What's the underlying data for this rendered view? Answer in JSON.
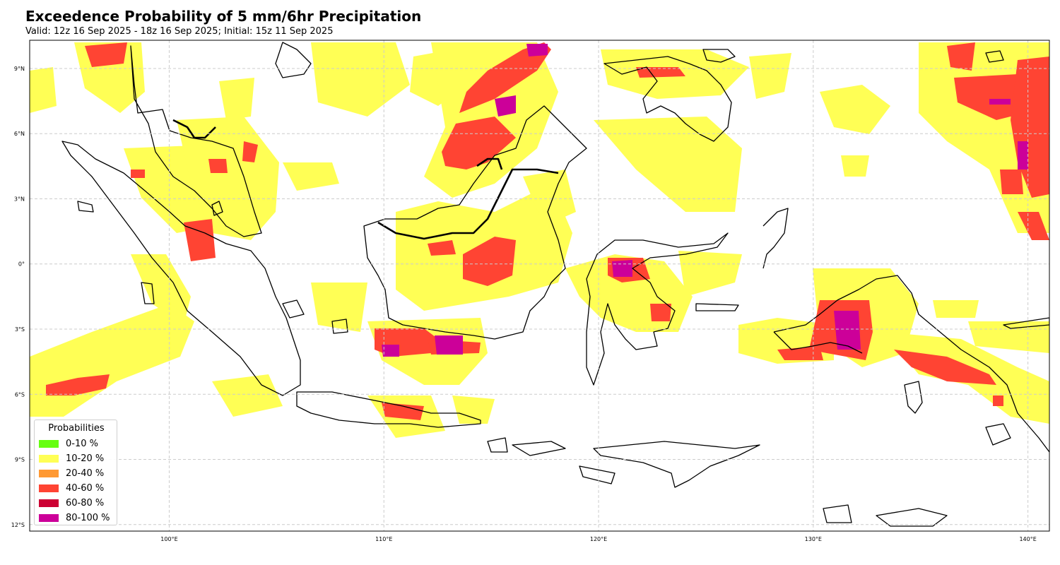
{
  "header": {
    "title": "Exceedence Probability of 5 mm/6hr Precipitation",
    "subtitle": "Valid: 12z 16 Sep 2025 - 18z 16 Sep 2025; Initial: 15z 11 Sep 2025"
  },
  "map": {
    "region": "Indonesia / Maritime Continent",
    "lon_range": [
      93.5,
      141
    ],
    "lat_range": [
      -12.3,
      10.3
    ],
    "gridlines": true,
    "lon_ticks": [
      {
        "value": 100,
        "label": "100°E"
      },
      {
        "value": 110,
        "label": "110°E"
      },
      {
        "value": 120,
        "label": "120°E"
      },
      {
        "value": 130,
        "label": "130°E"
      },
      {
        "value": 140,
        "label": "140°E"
      }
    ],
    "lat_ticks": [
      {
        "value": 9,
        "label": "9°N"
      },
      {
        "value": 6,
        "label": "6°N"
      },
      {
        "value": 3,
        "label": "3°N"
      },
      {
        "value": 0,
        "label": "0°"
      },
      {
        "value": -3,
        "label": "3°S"
      },
      {
        "value": -6,
        "label": "6°S"
      },
      {
        "value": -9,
        "label": "9°S"
      },
      {
        "value": -12,
        "label": "12°S"
      }
    ]
  },
  "legend": {
    "title": "Probabilities",
    "placement": "lower-left",
    "items": [
      {
        "label": "0-10 %",
        "color": "#66ff11"
      },
      {
        "label": "10-20 %",
        "color": "#ffff55"
      },
      {
        "label": "20-40 %",
        "color": "#ff9933"
      },
      {
        "label": "40-60 %",
        "color": "#ff4433"
      },
      {
        "label": "60-80 %",
        "color": "#cc0033"
      },
      {
        "label": "80-100 %",
        "color": "#cc0099"
      }
    ]
  },
  "colors": {
    "background": "#ffffff",
    "coastline": "#000000",
    "gridline": "#cccccc"
  }
}
